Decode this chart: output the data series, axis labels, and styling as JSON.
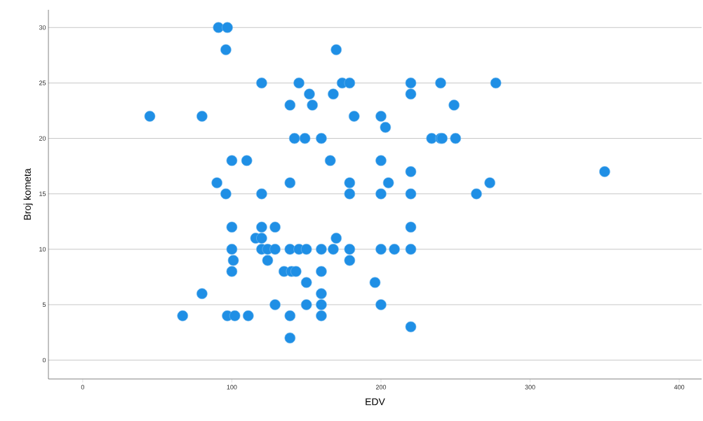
{
  "chart_data": {
    "type": "scatter",
    "xlabel": "EDV",
    "ylabel": "Broj kometa",
    "xlim": [
      -23,
      415
    ],
    "ylim": [
      -1.7,
      31.6
    ],
    "xticks": [
      0,
      100,
      200,
      300,
      400
    ],
    "yticks": [
      0,
      5,
      10,
      15,
      20,
      25,
      30
    ],
    "grid": "y",
    "series": [
      {
        "color": "#1f8fe5",
        "x": [
          91,
          97,
          96,
          170,
          120,
          145,
          174,
          179,
          220,
          240,
          277,
          152,
          168,
          220,
          139,
          154,
          249,
          45,
          80,
          182,
          200,
          203,
          142,
          149,
          160,
          234,
          240,
          241,
          250,
          100,
          110,
          166,
          200,
          90,
          139,
          179,
          205,
          273,
          350,
          96,
          120,
          179,
          200,
          220,
          264,
          220,
          100,
          120,
          129,
          220,
          116,
          120,
          170,
          100,
          120,
          124,
          129,
          139,
          145,
          150,
          160,
          168,
          179,
          200,
          209,
          220,
          101,
          124,
          179,
          100,
          135,
          140,
          143,
          160,
          150,
          196,
          80,
          160,
          129,
          150,
          160,
          200,
          67,
          97,
          102,
          111,
          139,
          160,
          220,
          139
        ],
        "values": [
          30,
          30,
          28,
          28,
          25,
          25,
          25,
          25,
          25,
          25,
          25,
          24,
          24,
          24,
          23,
          23,
          23,
          22,
          22,
          22,
          22,
          21,
          20,
          20,
          20,
          20,
          20,
          20,
          20,
          18,
          18,
          18,
          18,
          16,
          16,
          16,
          16,
          16,
          17,
          15,
          15,
          15,
          15,
          15,
          15,
          17,
          12,
          12,
          12,
          12,
          11,
          11,
          11,
          10,
          10,
          10,
          10,
          10,
          10,
          10,
          10,
          10,
          10,
          10,
          10,
          10,
          9,
          9,
          9,
          8,
          8,
          8,
          8,
          8,
          7,
          7,
          6,
          6,
          5,
          5,
          5,
          5,
          4,
          4,
          4,
          4,
          4,
          4,
          3,
          2
        ]
      }
    ]
  }
}
